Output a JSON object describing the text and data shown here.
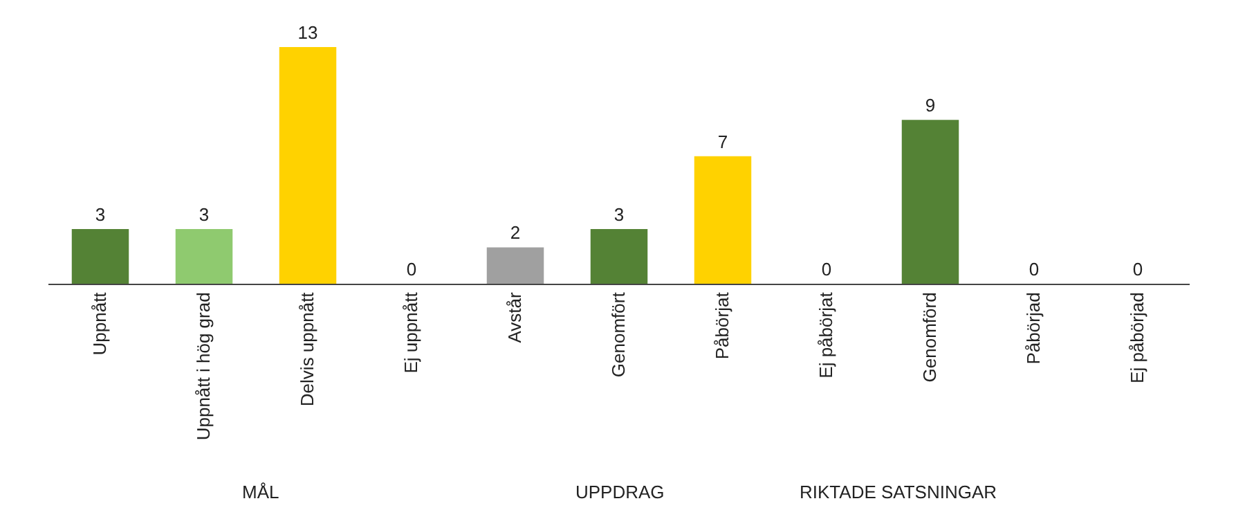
{
  "chart_data": {
    "type": "bar",
    "categories": [
      "Uppnått",
      "Uppnått i hög grad",
      "Delvis uppnått",
      "Ej uppnått",
      "Avstår",
      "Genomfört",
      "Påbörjat",
      "Ej påbörjat",
      "Genomförd",
      "Påbörjad",
      "Ej påbörjad"
    ],
    "values": [
      3,
      3,
      13,
      0,
      2,
      3,
      7,
      0,
      9,
      0,
      0
    ],
    "colors": [
      "#548235",
      "#8fca6f",
      "#ffd200",
      "#548235",
      "#a0a0a0",
      "#548235",
      "#ffd200",
      "#548235",
      "#548235",
      "#548235",
      "#548235"
    ],
    "data_labels": true,
    "annotations": [
      "MÅL",
      "UPPDRAG",
      "RIKTADE SATSNINGAR"
    ],
    "grid": false
  }
}
